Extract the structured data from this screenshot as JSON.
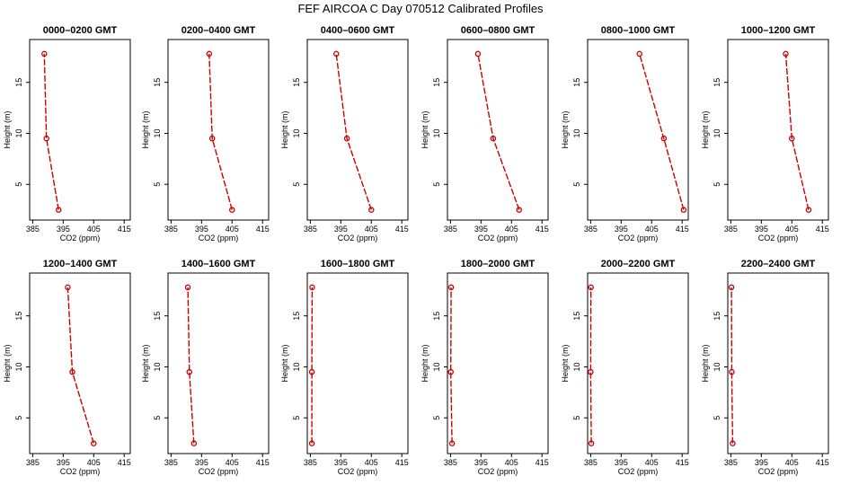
{
  "figure": {
    "title": "FEF AIRCOA C  Day 070512  Calibrated Profiles"
  },
  "chart_data": [
    {
      "type": "line",
      "title": "0000–0200 GMT",
      "xlabel": "CO2 (ppm)",
      "ylabel": "Height (m)",
      "xlim": [
        384,
        417
      ],
      "ylim": [
        1.5,
        19.2
      ],
      "xticks": [
        385,
        395,
        405,
        415
      ],
      "yticks": [
        5,
        10,
        15
      ],
      "series": [
        {
          "x": [
            393.5,
            389.5,
            388.8
          ],
          "y": [
            2.5,
            9.5,
            17.8
          ],
          "color": "#cc0000"
        }
      ]
    },
    {
      "type": "line",
      "title": "0200–0400 GMT",
      "xlabel": "CO2 (ppm)",
      "ylabel": "Height (m)",
      "xlim": [
        384,
        417
      ],
      "ylim": [
        1.5,
        19.2
      ],
      "xticks": [
        385,
        395,
        405,
        415
      ],
      "yticks": [
        5,
        10,
        15
      ],
      "series": [
        {
          "x": [
            405.0,
            398.5,
            397.5
          ],
          "y": [
            2.5,
            9.5,
            17.8
          ],
          "color": "#cc0000"
        }
      ]
    },
    {
      "type": "line",
      "title": "0400–0600 GMT",
      "xlabel": "CO2 (ppm)",
      "ylabel": "Height (m)",
      "xlim": [
        384,
        417
      ],
      "ylim": [
        1.5,
        19.2
      ],
      "xticks": [
        385,
        395,
        405,
        415
      ],
      "yticks": [
        5,
        10,
        15
      ],
      "series": [
        {
          "x": [
            405.0,
            397.0,
            393.5
          ],
          "y": [
            2.5,
            9.5,
            17.8
          ],
          "color": "#cc0000"
        }
      ]
    },
    {
      "type": "line",
      "title": "0600–0800 GMT",
      "xlabel": "CO2 (ppm)",
      "ylabel": "Height (m)",
      "xlim": [
        384,
        417
      ],
      "ylim": [
        1.5,
        19.2
      ],
      "xticks": [
        385,
        395,
        405,
        415
      ],
      "yticks": [
        5,
        10,
        15
      ],
      "series": [
        {
          "x": [
            407.5,
            399.0,
            394.0
          ],
          "y": [
            2.5,
            9.5,
            17.8
          ],
          "color": "#cc0000"
        }
      ]
    },
    {
      "type": "line",
      "title": "0800–1000 GMT",
      "xlabel": "CO2 (ppm)",
      "ylabel": "Height (m)",
      "xlim": [
        384,
        417
      ],
      "ylim": [
        1.5,
        19.2
      ],
      "xticks": [
        385,
        395,
        405,
        415
      ],
      "yticks": [
        5,
        10,
        15
      ],
      "series": [
        {
          "x": [
            415.5,
            409.0,
            401.0
          ],
          "y": [
            2.5,
            9.5,
            17.8
          ],
          "color": "#cc0000"
        }
      ]
    },
    {
      "type": "line",
      "title": "1000–1200 GMT",
      "xlabel": "CO2 (ppm)",
      "ylabel": "Height (m)",
      "xlim": [
        384,
        417
      ],
      "ylim": [
        1.5,
        19.2
      ],
      "xticks": [
        385,
        395,
        405,
        415
      ],
      "yticks": [
        5,
        10,
        15
      ],
      "series": [
        {
          "x": [
            410.5,
            405.0,
            403.0
          ],
          "y": [
            2.5,
            9.5,
            17.8
          ],
          "color": "#cc0000"
        }
      ]
    },
    {
      "type": "line",
      "title": "1200–1400 GMT",
      "xlabel": "CO2 (ppm)",
      "ylabel": "Height (m)",
      "xlim": [
        384,
        417
      ],
      "ylim": [
        1.5,
        19.2
      ],
      "xticks": [
        385,
        395,
        405,
        415
      ],
      "yticks": [
        5,
        10,
        15
      ],
      "series": [
        {
          "x": [
            405.0,
            398.0,
            396.5
          ],
          "y": [
            2.5,
            9.5,
            17.8
          ],
          "color": "#cc0000"
        }
      ]
    },
    {
      "type": "line",
      "title": "1400–1600 GMT",
      "xlabel": "CO2 (ppm)",
      "ylabel": "Height (m)",
      "xlim": [
        384,
        417
      ],
      "ylim": [
        1.5,
        19.2
      ],
      "xticks": [
        385,
        395,
        405,
        415
      ],
      "yticks": [
        5,
        10,
        15
      ],
      "series": [
        {
          "x": [
            392.5,
            391.0,
            390.5
          ],
          "y": [
            2.5,
            9.5,
            17.8
          ],
          "color": "#cc0000"
        }
      ]
    },
    {
      "type": "line",
      "title": "1600–1800 GMT",
      "xlabel": "CO2 (ppm)",
      "ylabel": "Height (m)",
      "xlim": [
        384,
        417
      ],
      "ylim": [
        1.5,
        19.2
      ],
      "xticks": [
        385,
        395,
        405,
        415
      ],
      "yticks": [
        5,
        10,
        15
      ],
      "series": [
        {
          "x": [
            385.5,
            385.5,
            385.6
          ],
          "y": [
            2.5,
            9.5,
            17.8
          ],
          "color": "#cc0000"
        }
      ]
    },
    {
      "type": "line",
      "title": "1800–2000 GMT",
      "xlabel": "CO2 (ppm)",
      "ylabel": "Height (m)",
      "xlim": [
        384,
        417
      ],
      "ylim": [
        1.5,
        19.2
      ],
      "xticks": [
        385,
        395,
        405,
        415
      ],
      "yticks": [
        5,
        10,
        15
      ],
      "series": [
        {
          "x": [
            385.5,
            385.1,
            385.2
          ],
          "y": [
            2.5,
            9.5,
            17.8
          ],
          "color": "#cc0000"
        }
      ]
    },
    {
      "type": "line",
      "title": "2000–2200 GMT",
      "xlabel": "CO2 (ppm)",
      "ylabel": "Height (m)",
      "xlim": [
        384,
        417
      ],
      "ylim": [
        1.5,
        19.2
      ],
      "xticks": [
        385,
        395,
        405,
        415
      ],
      "yticks": [
        5,
        10,
        15
      ],
      "series": [
        {
          "x": [
            385.2,
            385.0,
            385.1
          ],
          "y": [
            2.5,
            9.5,
            17.8
          ],
          "color": "#cc0000"
        }
      ]
    },
    {
      "type": "line",
      "title": "2200–2400 GMT",
      "xlabel": "CO2 (ppm)",
      "ylabel": "Height (m)",
      "xlim": [
        384,
        417
      ],
      "ylim": [
        1.5,
        19.2
      ],
      "xticks": [
        385,
        395,
        405,
        415
      ],
      "yticks": [
        5,
        10,
        15
      ],
      "series": [
        {
          "x": [
            385.6,
            385.3,
            385.2
          ],
          "y": [
            2.5,
            9.5,
            17.8
          ],
          "color": "#cc0000"
        }
      ]
    }
  ]
}
